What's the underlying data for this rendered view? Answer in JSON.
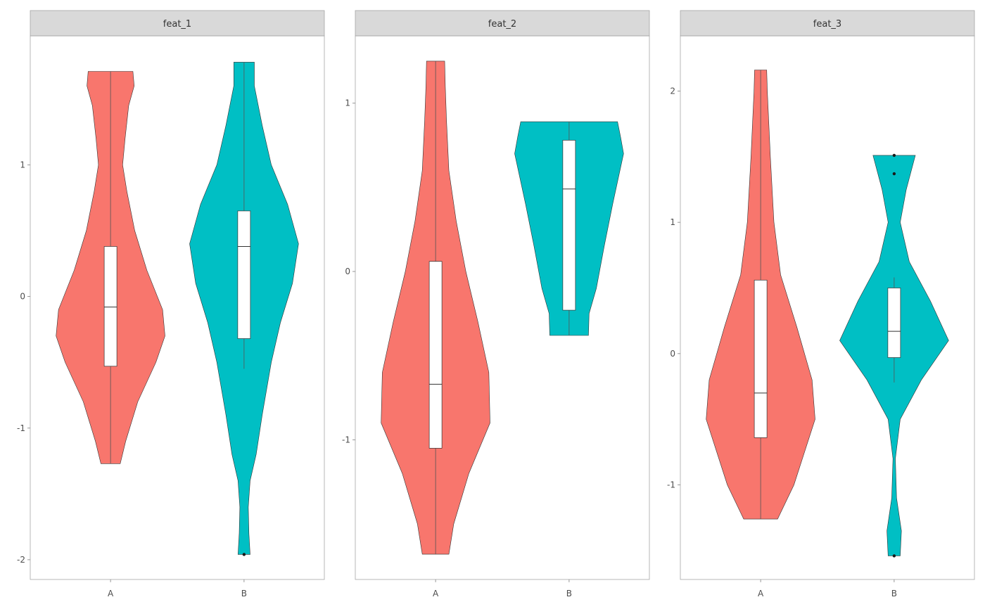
{
  "chart_data": {
    "type": "violin",
    "categories": [
      "A",
      "B"
    ],
    "colors": {
      "A": "#F8766D",
      "B": "#00BFC4"
    },
    "grid": false,
    "legend": "none",
    "facets": [
      {
        "title": "feat_1",
        "ylim": [
          -2.15,
          1.98
        ],
        "yticks": [
          -2,
          -1,
          0,
          1
        ],
        "ytick_labels": [
          "-2",
          "-1",
          "0",
          "1"
        ],
        "groups": [
          {
            "category": "A",
            "min": -1.27,
            "max": 1.71,
            "q1": -0.53,
            "median": -0.08,
            "q3": 0.38,
            "whisker_low": -1.27,
            "whisker_high": 1.71,
            "outliers": [],
            "density": [
              [
                -1.27,
                0.16
              ],
              [
                -1.1,
                0.25
              ],
              [
                -0.8,
                0.45
              ],
              [
                -0.5,
                0.75
              ],
              [
                -0.3,
                0.9
              ],
              [
                -0.1,
                0.86
              ],
              [
                0.2,
                0.6
              ],
              [
                0.5,
                0.4
              ],
              [
                0.8,
                0.27
              ],
              [
                1.0,
                0.2
              ],
              [
                1.2,
                0.24
              ],
              [
                1.45,
                0.3
              ],
              [
                1.6,
                0.39
              ],
              [
                1.71,
                0.37
              ]
            ]
          },
          {
            "category": "B",
            "min": -1.96,
            "max": 1.78,
            "q1": -0.32,
            "median": 0.38,
            "q3": 0.65,
            "whisker_low": -0.55,
            "whisker_high": 1.78,
            "outliers": [
              -1.96
            ],
            "density": [
              [
                -1.96,
                0.1
              ],
              [
                -1.8,
                0.08
              ],
              [
                -1.6,
                0.07
              ],
              [
                -1.4,
                0.1
              ],
              [
                -1.2,
                0.2
              ],
              [
                -0.9,
                0.3
              ],
              [
                -0.5,
                0.45
              ],
              [
                -0.2,
                0.6
              ],
              [
                0.1,
                0.8
              ],
              [
                0.4,
                0.9
              ],
              [
                0.7,
                0.72
              ],
              [
                1.0,
                0.45
              ],
              [
                1.3,
                0.3
              ],
              [
                1.6,
                0.17
              ],
              [
                1.78,
                0.17
              ]
            ]
          }
        ]
      },
      {
        "title": "feat_2",
        "ylim": [
          -1.83,
          1.4
        ],
        "yticks": [
          -1,
          0,
          1
        ],
        "ytick_labels": [
          "-1",
          "0",
          "1"
        ],
        "groups": [
          {
            "category": "A",
            "min": -1.68,
            "max": 1.25,
            "q1": -1.05,
            "median": -0.67,
            "q3": 0.06,
            "whisker_low": -1.68,
            "whisker_high": 1.25,
            "outliers": [],
            "density": [
              [
                -1.68,
                0.22
              ],
              [
                -1.5,
                0.3
              ],
              [
                -1.2,
                0.55
              ],
              [
                -0.9,
                0.9
              ],
              [
                -0.6,
                0.88
              ],
              [
                -0.3,
                0.7
              ],
              [
                0.0,
                0.5
              ],
              [
                0.3,
                0.34
              ],
              [
                0.6,
                0.22
              ],
              [
                0.9,
                0.18
              ],
              [
                1.1,
                0.16
              ],
              [
                1.25,
                0.15
              ]
            ]
          },
          {
            "category": "B",
            "min": -0.38,
            "max": 0.89,
            "q1": -0.23,
            "median": 0.49,
            "q3": 0.78,
            "whisker_low": -0.38,
            "whisker_high": 0.89,
            "outliers": [],
            "density": [
              [
                -0.38,
                0.32
              ],
              [
                -0.25,
                0.33
              ],
              [
                -0.1,
                0.45
              ],
              [
                0.15,
                0.58
              ],
              [
                0.4,
                0.72
              ],
              [
                0.7,
                0.9
              ],
              [
                0.8,
                0.85
              ],
              [
                0.89,
                0.8
              ]
            ]
          }
        ]
      },
      {
        "title": "feat_3",
        "ylim": [
          -1.72,
          2.42
        ],
        "yticks": [
          -1,
          0,
          1,
          2
        ],
        "ytick_labels": [
          "-1",
          "0",
          "1",
          "2"
        ],
        "groups": [
          {
            "category": "A",
            "min": -1.26,
            "max": 2.16,
            "q1": -0.64,
            "median": -0.3,
            "q3": 0.56,
            "whisker_low": -1.26,
            "whisker_high": 2.16,
            "outliers": [],
            "density": [
              [
                -1.26,
                0.28
              ],
              [
                -1.0,
                0.55
              ],
              [
                -0.5,
                0.9
              ],
              [
                -0.2,
                0.85
              ],
              [
                0.2,
                0.6
              ],
              [
                0.6,
                0.33
              ],
              [
                1.0,
                0.22
              ],
              [
                1.5,
                0.16
              ],
              [
                2.0,
                0.11
              ],
              [
                2.16,
                0.1
              ]
            ]
          },
          {
            "category": "B",
            "min": -1.54,
            "max": 1.51,
            "q1": -0.03,
            "median": 0.17,
            "q3": 0.5,
            "whisker_low": -0.22,
            "whisker_high": 0.58,
            "outliers": [
              1.51,
              1.37,
              -1.54
            ],
            "density": [
              [
                -1.54,
                0.1
              ],
              [
                -1.35,
                0.12
              ],
              [
                -1.1,
                0.04
              ],
              [
                -0.8,
                0.02
              ],
              [
                -0.5,
                0.1
              ],
              [
                -0.2,
                0.45
              ],
              [
                0.1,
                0.9
              ],
              [
                0.4,
                0.6
              ],
              [
                0.7,
                0.25
              ],
              [
                1.0,
                0.1
              ],
              [
                1.25,
                0.2
              ],
              [
                1.51,
                0.35
              ]
            ]
          }
        ]
      }
    ]
  }
}
